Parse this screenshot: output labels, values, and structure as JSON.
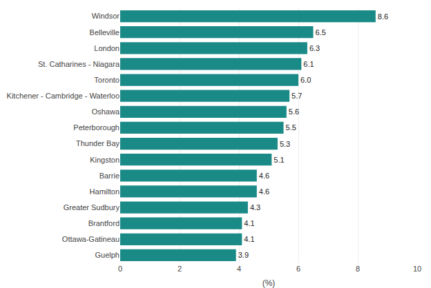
{
  "chart_data": {
    "type": "bar",
    "orientation": "horizontal",
    "categories": [
      "Guelph",
      "Ottawa-Gatineau",
      "Brantford",
      "Greater Sudbury",
      "Hamilton",
      "Barrie",
      "Kingston",
      "Thunder Bay",
      "Peterborough",
      "Oshawa",
      "Kitchener - Cambridge - Waterloo",
      "Toronto",
      "St. Catharines - Niagara",
      "London",
      "Belleville",
      "Windsor"
    ],
    "values": [
      3.9,
      4.1,
      4.1,
      4.3,
      4.6,
      4.6,
      5.1,
      5.3,
      5.5,
      5.6,
      5.7,
      6.0,
      6.1,
      6.3,
      6.5,
      8.6
    ],
    "value_labels": [
      "3.9",
      "4.1",
      "4.1",
      "4.3",
      "4.6",
      "4.6",
      "5.1",
      "5.3",
      "5.5",
      "5.6",
      "5.7",
      "6.0",
      "6.1",
      "6.3",
      "6.5",
      "8.6"
    ],
    "data_labels": true,
    "color": "#1a8a87",
    "xlabel": "(%)",
    "xlim": [
      0,
      10
    ],
    "xticks": [
      0,
      2,
      4,
      6,
      8,
      10
    ],
    "grid": true
  }
}
